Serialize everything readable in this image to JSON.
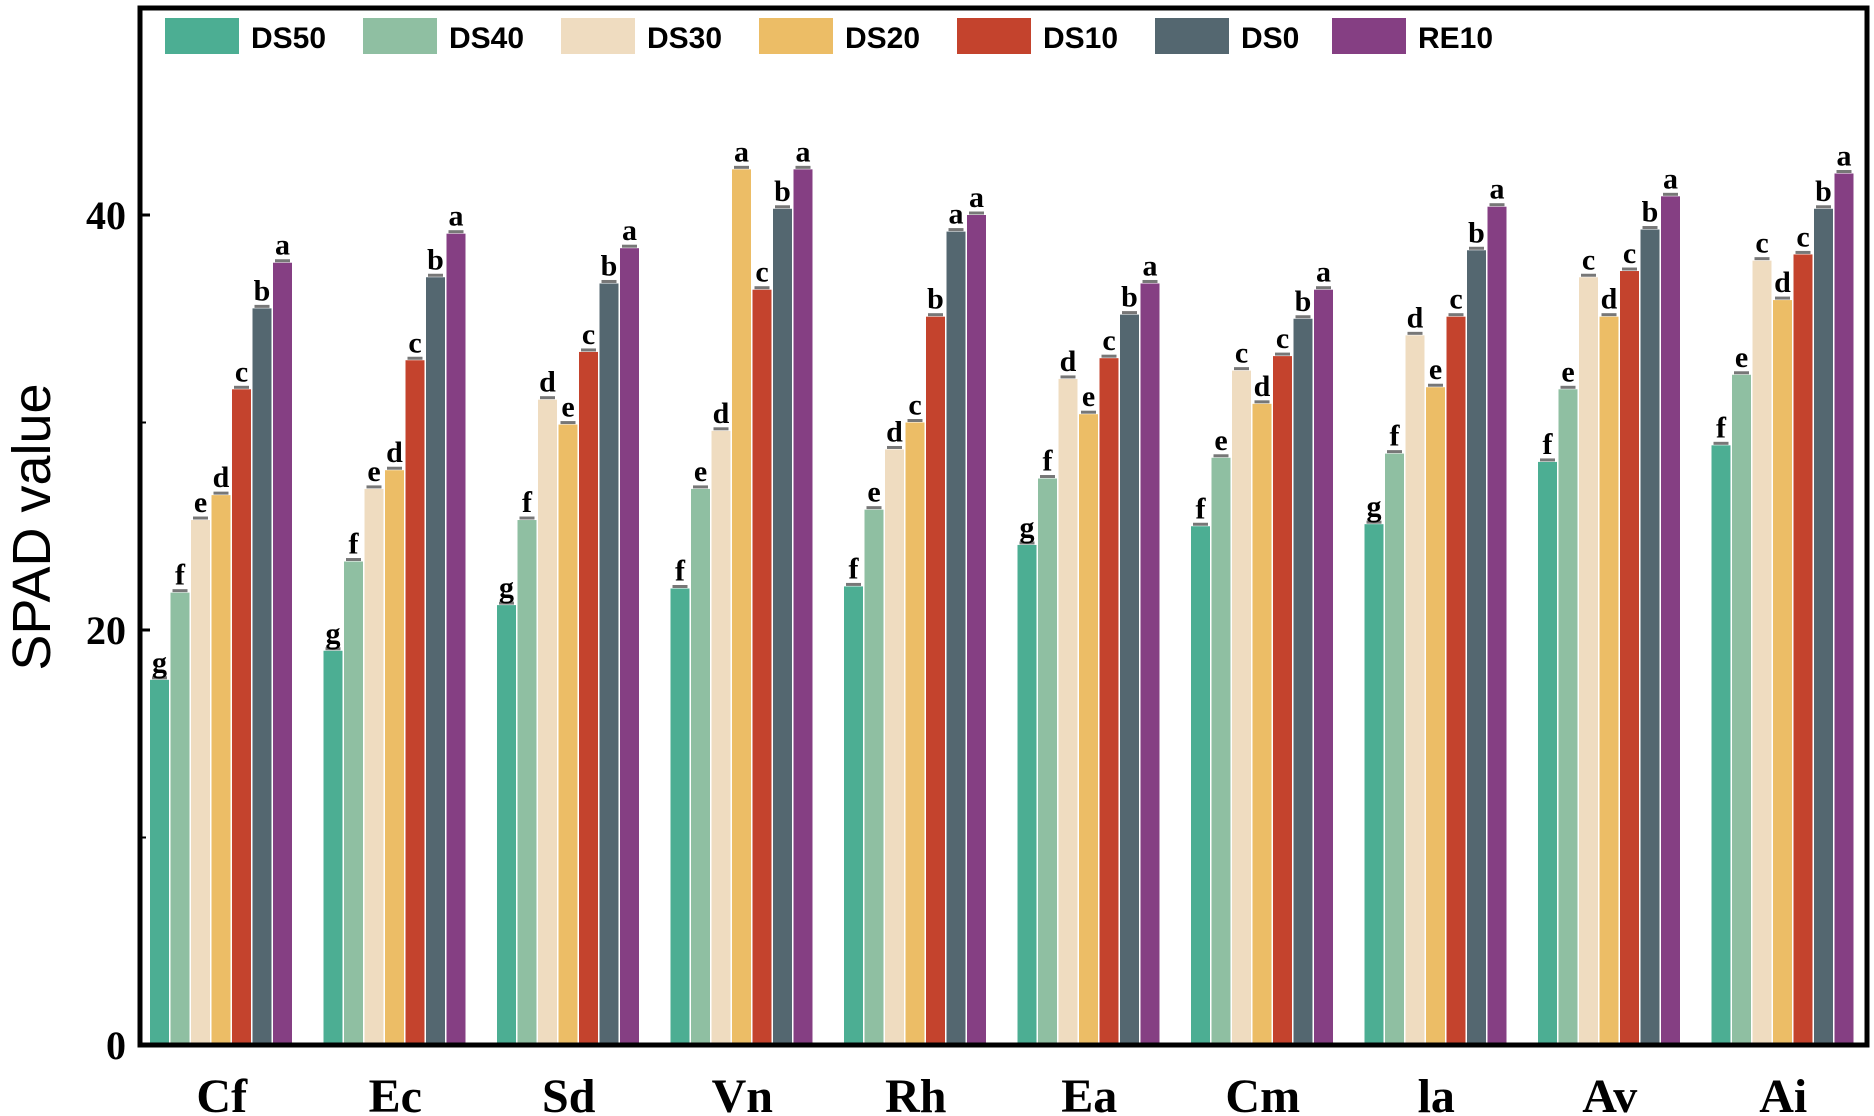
{
  "chart_data": {
    "type": "bar",
    "title": "",
    "xlabel": "",
    "ylabel": "SPAD value",
    "ylim": [
      0,
      40
    ],
    "yticks": [
      0,
      20,
      40
    ],
    "ytick_labels": [
      "0",
      "20",
      "40"
    ],
    "grid": false,
    "legend_position": "top",
    "categories": [
      "Cf",
      "Ec",
      "Sd",
      "Vn",
      "Rh",
      "Ea",
      "Cm",
      "la",
      "Av",
      "Ai"
    ],
    "series": [
      {
        "name": "DS50",
        "color": "#4cae93",
        "values": [
          17.6,
          19.0,
          21.2,
          22.0,
          22.1,
          24.1,
          25.0,
          25.1,
          28.1,
          28.9
        ],
        "letters": [
          "g",
          "g",
          "g",
          "f",
          "f",
          "g",
          "f",
          "g",
          "f",
          "f"
        ]
      },
      {
        "name": "DS40",
        "color": "#8fbfa2",
        "values": [
          21.8,
          23.3,
          25.3,
          26.8,
          25.8,
          27.3,
          28.3,
          28.5,
          31.6,
          32.3
        ],
        "letters": [
          "f",
          "f",
          "f",
          "e",
          "e",
          "f",
          "e",
          "f",
          "e",
          "e"
        ]
      },
      {
        "name": "DS30",
        "color": "#efdcc0",
        "values": [
          25.3,
          26.8,
          31.1,
          29.6,
          28.7,
          32.1,
          32.5,
          34.2,
          37.0,
          37.8
        ],
        "letters": [
          "e",
          "e",
          "d",
          "d",
          "d",
          "d",
          "c",
          "d",
          "c",
          "c"
        ]
      },
      {
        "name": "DS20",
        "color": "#ecbd66",
        "values": [
          26.5,
          27.7,
          29.9,
          42.2,
          30.0,
          30.4,
          30.9,
          31.7,
          35.1,
          35.9
        ],
        "letters": [
          "d",
          "d",
          "e",
          "a",
          "c",
          "e",
          "d",
          "e",
          "d",
          "d"
        ]
      },
      {
        "name": "DS10",
        "color": "#c4432d",
        "values": [
          31.6,
          33.0,
          33.4,
          36.4,
          35.1,
          33.1,
          33.2,
          35.1,
          37.3,
          38.1
        ],
        "letters": [
          "c",
          "c",
          "c",
          "c",
          "b",
          "c",
          "c",
          "c",
          "c",
          "c"
        ]
      },
      {
        "name": "DS0",
        "color": "#546770",
        "values": [
          35.5,
          37.0,
          36.7,
          40.3,
          39.2,
          35.2,
          35.0,
          38.3,
          39.3,
          40.3
        ],
        "letters": [
          "b",
          "b",
          "b",
          "b",
          "a",
          "b",
          "b",
          "b",
          "b",
          "b"
        ]
      },
      {
        "name": "RE10",
        "color": "#853f83",
        "values": [
          37.7,
          39.1,
          38.4,
          42.2,
          40.0,
          36.7,
          36.4,
          40.4,
          40.9,
          42.0
        ],
        "letters": [
          "a",
          "a",
          "a",
          "a",
          "a",
          "a",
          "a",
          "a",
          "a",
          "a"
        ]
      }
    ]
  }
}
